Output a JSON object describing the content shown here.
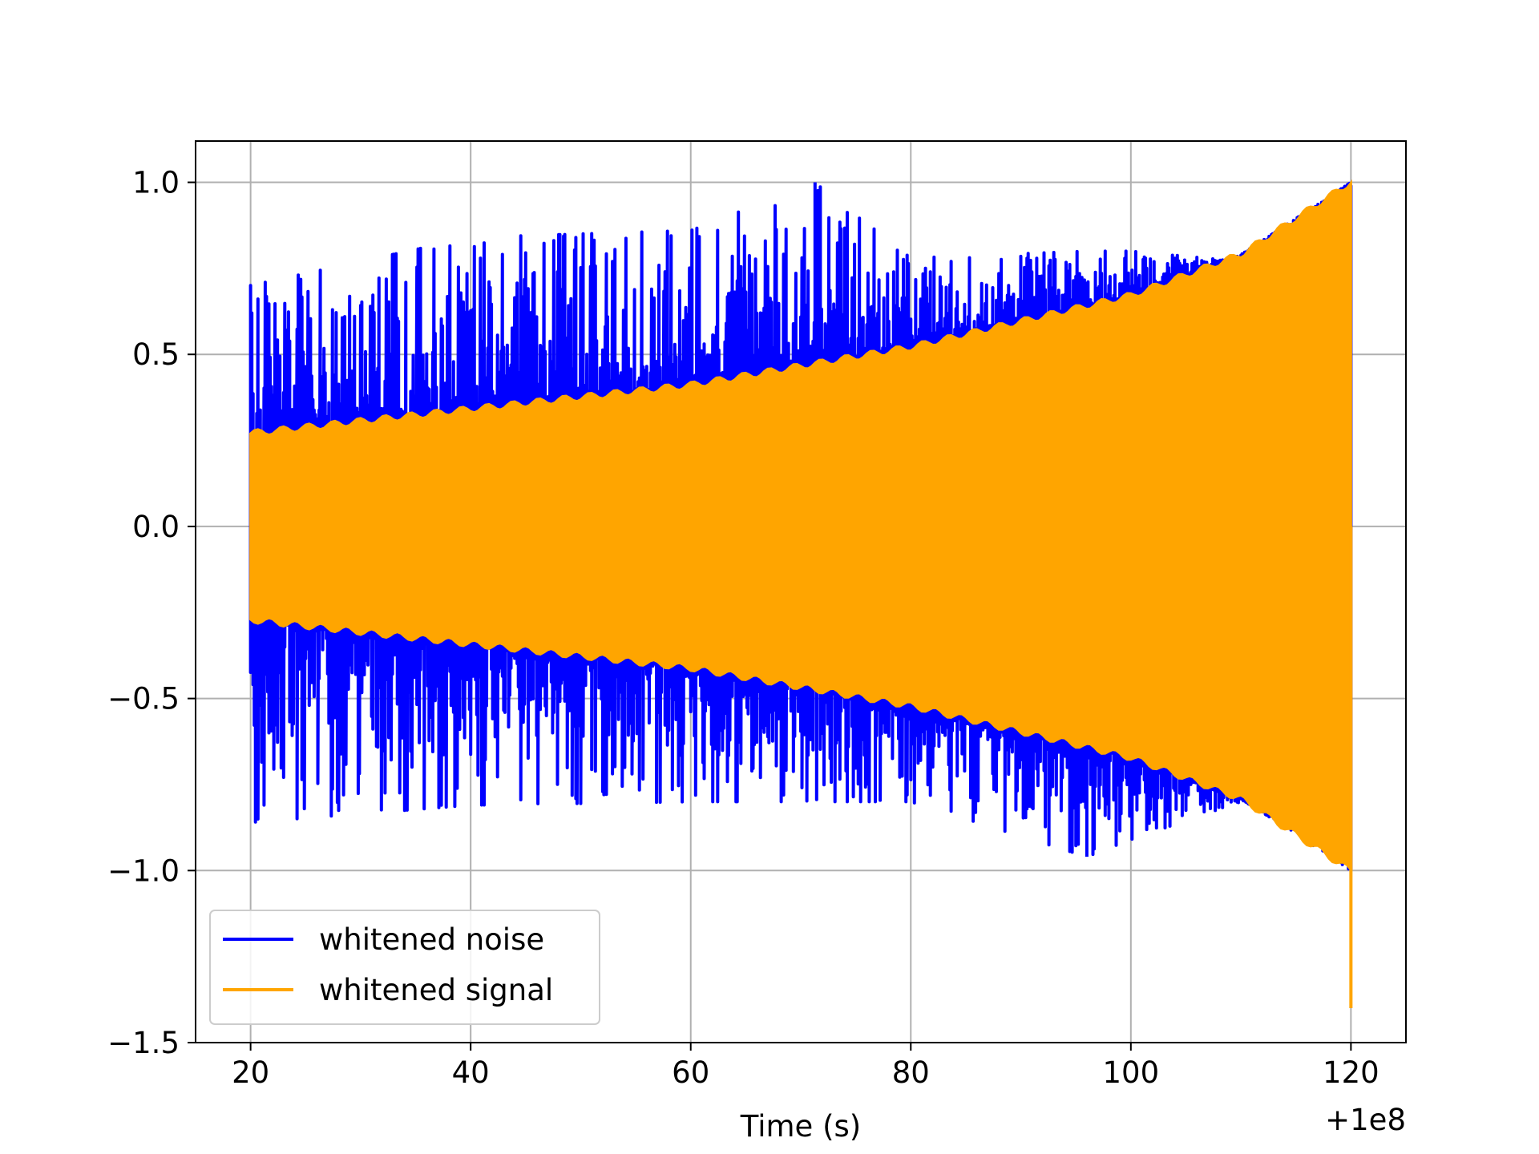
{
  "chart_data": {
    "type": "line",
    "title": "",
    "xlabel": "Time (s)",
    "ylabel": "",
    "x_offset_text": "+1e8",
    "xlim": [
      15,
      125
    ],
    "ylim": [
      -1.5,
      1.12
    ],
    "grid": true,
    "legend_position": "lower-left",
    "x_ticks": [
      20,
      40,
      60,
      80,
      100,
      120
    ],
    "x_tick_labels": [
      "20",
      "40",
      "60",
      "80",
      "100",
      "120"
    ],
    "y_ticks": [
      -1.5,
      -1.0,
      -0.5,
      0.0,
      0.5,
      1.0
    ],
    "y_tick_labels": [
      "−1.5",
      "−1.0",
      "−0.5",
      "0.0",
      "0.5",
      "1.0"
    ],
    "series": [
      {
        "name": "whitened noise",
        "color": "#0000ff",
        "x_range": [
          20,
          120
        ],
        "y_range": [
          -0.96,
          1.0
        ],
        "envelope_x": [
          20,
          40,
          60,
          71.3,
          80,
          96,
          100,
          110,
          120
        ],
        "envelope_upper": [
          0.7,
          0.84,
          0.86,
          1.0,
          0.78,
          0.8,
          0.8,
          0.77,
          0.9
        ],
        "envelope_lower": [
          -0.86,
          -0.81,
          -0.8,
          -0.8,
          -0.8,
          -0.96,
          -0.91,
          -0.8,
          -0.9
        ]
      },
      {
        "name": "whitened signal",
        "color": "#ffa500",
        "x_range": [
          20,
          120
        ],
        "y_range": [
          -1.4,
          1.0
        ],
        "envelope_x": [
          20,
          40,
          60,
          80,
          100,
          110,
          120
        ],
        "envelope_upper": [
          0.27,
          0.34,
          0.41,
          0.52,
          0.67,
          0.79,
          1.0
        ],
        "envelope_lower": [
          -0.27,
          -0.34,
          -0.41,
          -0.52,
          -0.67,
          -0.79,
          -1.0
        ],
        "end_spike": -1.4
      }
    ]
  }
}
